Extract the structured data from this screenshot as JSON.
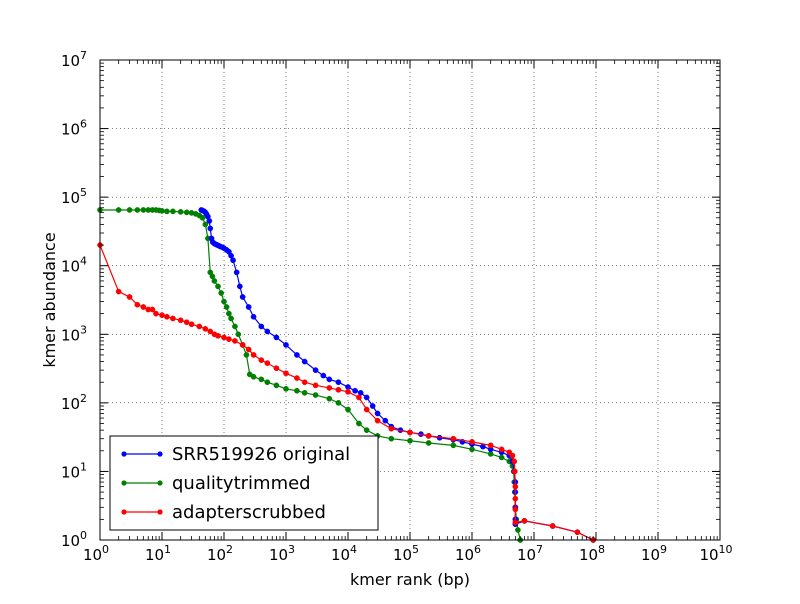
{
  "chart_data": {
    "type": "line",
    "title": "",
    "xlabel": "kmer rank (bp)",
    "ylabel": "kmer abundance",
    "x_scale": "log",
    "y_scale": "log",
    "xlim": [
      1,
      10000000000
    ],
    "ylim": [
      1,
      10000000
    ],
    "grid": true,
    "legend_position": "lower-left",
    "x_ticks": [
      {
        "value": 1,
        "base": "10",
        "exp": "0"
      },
      {
        "value": 10,
        "base": "10",
        "exp": "1"
      },
      {
        "value": 100,
        "base": "10",
        "exp": "2"
      },
      {
        "value": 1000,
        "base": "10",
        "exp": "3"
      },
      {
        "value": 10000,
        "base": "10",
        "exp": "4"
      },
      {
        "value": 100000,
        "base": "10",
        "exp": "5"
      },
      {
        "value": 1000000,
        "base": "10",
        "exp": "6"
      },
      {
        "value": 10000000,
        "base": "10",
        "exp": "7"
      },
      {
        "value": 100000000,
        "base": "10",
        "exp": "8"
      },
      {
        "value": 1000000000,
        "base": "10",
        "exp": "9"
      },
      {
        "value": 10000000000,
        "base": "10",
        "exp": "10"
      }
    ],
    "y_ticks": [
      {
        "value": 1,
        "base": "10",
        "exp": "0"
      },
      {
        "value": 10,
        "base": "10",
        "exp": "1"
      },
      {
        "value": 100,
        "base": "10",
        "exp": "2"
      },
      {
        "value": 1000,
        "base": "10",
        "exp": "3"
      },
      {
        "value": 10000,
        "base": "10",
        "exp": "4"
      },
      {
        "value": 100000,
        "base": "10",
        "exp": "5"
      },
      {
        "value": 1000000,
        "base": "10",
        "exp": "6"
      },
      {
        "value": 10000000,
        "base": "10",
        "exp": "7"
      }
    ],
    "series": [
      {
        "name": "SRR519926 original",
        "color": "#0000ff",
        "x": [
          43,
          45,
          48,
          50,
          52,
          55,
          58,
          60,
          63,
          66,
          70,
          74,
          78,
          83,
          88,
          95,
          100,
          110,
          120,
          130,
          140,
          160,
          180,
          200,
          250,
          300,
          400,
          500,
          700,
          1000,
          1500,
          2000,
          3000,
          4000,
          5000,
          7000,
          10000,
          13000,
          16000,
          20000,
          25000,
          30000,
          40000,
          50000,
          70000,
          100000,
          150000,
          200000,
          300000,
          500000,
          700000,
          1000000,
          1500000,
          2000000,
          3000000,
          4000000,
          4500000,
          4800000,
          5000000,
          5000000,
          5000000,
          5000000,
          5000000,
          7000000,
          20000000,
          50000000,
          90000000
        ],
        "y": [
          65000,
          64000,
          62000,
          60000,
          57000,
          52000,
          45000,
          35000,
          25000,
          22000,
          21000,
          20500,
          20000,
          19500,
          19000,
          18500,
          18000,
          17000,
          16000,
          14000,
          12000,
          8000,
          5000,
          3500,
          2500,
          1800,
          1300,
          1100,
          900,
          700,
          500,
          400,
          300,
          250,
          220,
          200,
          170,
          150,
          140,
          120,
          90,
          70,
          55,
          45,
          40,
          37,
          35,
          33,
          31,
          29,
          27,
          25,
          23,
          21,
          19,
          17,
          14,
          10,
          7,
          5,
          3,
          2,
          1.7,
          1.9,
          1.6,
          1.3,
          1.0
        ]
      },
      {
        "name": "qualitytrimmed",
        "color": "#008000",
        "x": [
          1,
          2,
          3,
          4,
          5,
          6,
          7,
          8,
          9,
          10,
          12,
          15,
          20,
          25,
          30,
          35,
          40,
          45,
          50,
          55,
          60,
          65,
          70,
          80,
          90,
          100,
          110,
          120,
          130,
          150,
          170,
          200,
          230,
          260,
          300,
          400,
          500,
          700,
          1000,
          1500,
          2000,
          3000,
          5000,
          7000,
          10000,
          15000,
          20000,
          30000,
          50000,
          100000,
          200000,
          500000,
          1000000,
          2000000,
          3000000,
          4000000,
          4500000,
          4700000,
          4800000,
          4900000,
          5000000,
          5200000,
          5500000,
          6000000
        ],
        "y": [
          65000,
          65000,
          65000,
          65000,
          65000,
          65000,
          65000,
          65000,
          64000,
          63000,
          62000,
          62000,
          61000,
          60000,
          59000,
          57000,
          54000,
          50000,
          40000,
          25000,
          8000,
          7000,
          6000,
          5000,
          4000,
          3000,
          2500,
          2000,
          1700,
          1300,
          1000,
          700,
          500,
          260,
          240,
          220,
          200,
          180,
          160,
          150,
          140,
          130,
          115,
          100,
          80,
          50,
          40,
          33,
          30,
          28,
          26,
          24,
          21,
          18,
          16,
          14,
          12,
          10,
          7,
          5,
          3,
          2,
          1.4,
          1.0
        ]
      },
      {
        "name": "adapterscrubbed",
        "color": "#ff0000",
        "x": [
          1,
          2,
          3,
          4,
          5,
          6,
          7,
          8,
          10,
          12,
          15,
          20,
          25,
          30,
          40,
          50,
          60,
          70,
          80,
          100,
          120,
          150,
          200,
          250,
          300,
          400,
          500,
          700,
          1000,
          1500,
          2000,
          3000,
          5000,
          7000,
          10000,
          15000,
          20000,
          30000,
          50000,
          100000,
          200000,
          500000,
          1000000,
          2000000,
          3000000,
          4000000,
          4500000,
          4800000,
          4900000,
          5000000,
          5000000,
          5000000,
          5000000,
          7000000,
          20000000,
          50000000,
          90000000
        ],
        "y": [
          20000,
          4200,
          3500,
          2700,
          2500,
          2300,
          2300,
          2000,
          1900,
          1800,
          1700,
          1600,
          1500,
          1400,
          1300,
          1200,
          1100,
          1000,
          950,
          900,
          850,
          800,
          700,
          600,
          500,
          420,
          380,
          320,
          270,
          230,
          200,
          180,
          165,
          155,
          145,
          120,
          80,
          55,
          42,
          37,
          33,
          30,
          27,
          24,
          21,
          19,
          17,
          14,
          10,
          6,
          4,
          2.8,
          1.8,
          1.9,
          1.6,
          1.3,
          1.0
        ]
      }
    ]
  }
}
